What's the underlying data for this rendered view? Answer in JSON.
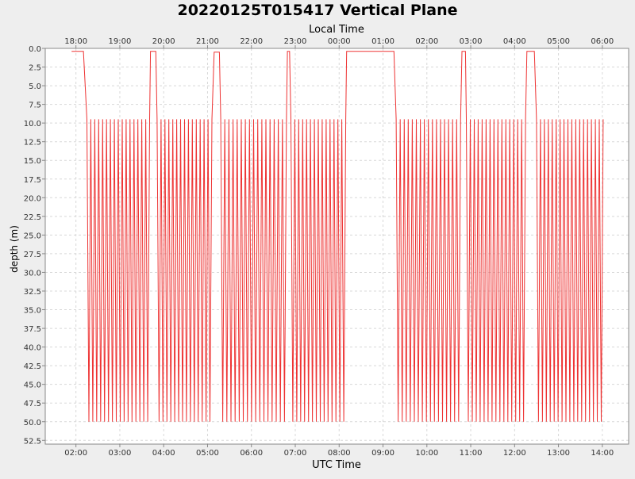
{
  "chart_data": {
    "type": "line",
    "title": "20220125T015417 Vertical Plane",
    "top_axis_label": "Local Time",
    "xlabel": "UTC Time",
    "ylabel": "depth (m)",
    "y_inverted": true,
    "ylim": [
      0.0,
      53.0
    ],
    "y_ticks": [
      "0.0",
      "2.5",
      "5.0",
      "7.5",
      "10.0",
      "12.5",
      "15.0",
      "17.5",
      "20.0",
      "22.5",
      "25.0",
      "27.5",
      "30.0",
      "32.5",
      "35.0",
      "37.5",
      "40.0",
      "42.5",
      "45.0",
      "47.5",
      "50.0",
      "52.5"
    ],
    "x_unit": "hours UTC relative to 2022-01-25 00:00",
    "xlim": [
      1.3,
      14.6
    ],
    "bottom_ticks": [
      {
        "x": 2,
        "label": "02:00"
      },
      {
        "x": 3,
        "label": "03:00"
      },
      {
        "x": 4,
        "label": "04:00"
      },
      {
        "x": 5,
        "label": "05:00"
      },
      {
        "x": 6,
        "label": "06:00"
      },
      {
        "x": 7,
        "label": "07:00"
      },
      {
        "x": 8,
        "label": "08:00"
      },
      {
        "x": 9,
        "label": "09:00"
      },
      {
        "x": 10,
        "label": "10:00"
      },
      {
        "x": 11,
        "label": "11:00"
      },
      {
        "x": 12,
        "label": "12:00"
      },
      {
        "x": 13,
        "label": "13:00"
      },
      {
        "x": 14,
        "label": "14:00"
      }
    ],
    "top_ticks": [
      {
        "x": 2,
        "label": "18:00"
      },
      {
        "x": 3,
        "label": "19:00"
      },
      {
        "x": 4,
        "label": "20:00"
      },
      {
        "x": 5,
        "label": "21:00"
      },
      {
        "x": 6,
        "label": "22:00"
      },
      {
        "x": 7,
        "label": "23:00"
      },
      {
        "x": 8,
        "label": "00:00"
      },
      {
        "x": 9,
        "label": "01:00"
      },
      {
        "x": 10,
        "label": "02:00"
      },
      {
        "x": 11,
        "label": "03:00"
      },
      {
        "x": 12,
        "label": "04:00"
      },
      {
        "x": 13,
        "label": "05:00"
      },
      {
        "x": 14,
        "label": "06:00"
      }
    ],
    "grid": true,
    "series": [
      {
        "color": "#ee3333",
        "segments": [
          {
            "kind": "surface",
            "x0": 1.9,
            "x1": 2.17,
            "depth": 0.4
          },
          {
            "kind": "yo",
            "x0": 2.25,
            "x1": 3.68,
            "cycles": 16,
            "top": 9.5,
            "bottom": 50.0
          },
          {
            "kind": "surface",
            "x0": 3.7,
            "x1": 3.82,
            "depth": 0.4
          },
          {
            "kind": "yo",
            "x0": 3.85,
            "x1": 5.1,
            "cycles": 14,
            "top": 9.5,
            "bottom": 50.0
          },
          {
            "kind": "surface",
            "x0": 5.15,
            "x1": 5.27,
            "depth": 0.5
          },
          {
            "kind": "yo",
            "x0": 5.3,
            "x1": 6.8,
            "cycles": 16,
            "top": 9.5,
            "bottom": 50.0
          },
          {
            "kind": "surface",
            "x0": 6.82,
            "x1": 6.87,
            "depth": 0.4
          },
          {
            "kind": "yo",
            "x0": 6.9,
            "x1": 8.15,
            "cycles": 14,
            "top": 9.5,
            "bottom": 50.0
          },
          {
            "kind": "surface",
            "x0": 8.17,
            "x1": 9.25,
            "depth": 0.4
          },
          {
            "kind": "yo",
            "x0": 9.3,
            "x1": 10.77,
            "cycles": 16,
            "top": 9.5,
            "bottom": 50.0
          },
          {
            "kind": "surface",
            "x0": 10.8,
            "x1": 10.88,
            "depth": 0.4
          },
          {
            "kind": "yo",
            "x0": 10.9,
            "x1": 12.25,
            "cycles": 15,
            "top": 9.5,
            "bottom": 50.0
          },
          {
            "kind": "surface",
            "x0": 12.28,
            "x1": 12.45,
            "depth": 0.4
          },
          {
            "kind": "yo",
            "x0": 12.5,
            "x1": 14.02,
            "cycles": 17,
            "top": 9.5,
            "bottom": 50.0
          }
        ]
      }
    ]
  }
}
